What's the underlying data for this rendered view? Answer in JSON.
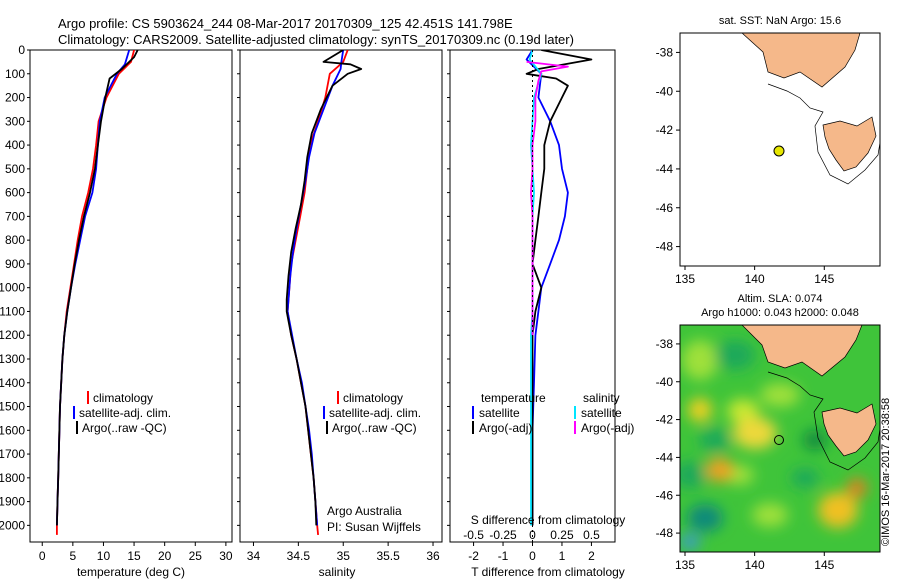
{
  "header": {
    "line1": "Argo profile: CS 5903624_244 08-Mar-2017 20170309_125 42.451S 141.798E",
    "line2": "Climatology: CARS2009. Satellite-adjusted climatology: synTS_20170309.nc (0.19d later)"
  },
  "colors": {
    "climatology": "#ff0000",
    "satellite": "#0000ff",
    "argo": "#000000",
    "sal_satellite": "#00e5ff",
    "sal_argo": "#ff00ff",
    "land": "#f5b88a"
  },
  "depth_ticks": [
    "0",
    "100",
    "200",
    "300",
    "400",
    "500",
    "600",
    "700",
    "800",
    "900",
    "1000",
    "1100",
    "1200",
    "1300",
    "1400",
    "1500",
    "1600",
    "1700",
    "1800",
    "1900",
    "2000"
  ],
  "panel1": {
    "xlabel": "temperature (deg C)",
    "xticks": [
      "0",
      "5",
      "10",
      "15",
      "20",
      "25",
      "30"
    ],
    "legend": [
      "climatology",
      "satellite-adj. clim.",
      "Argo(..raw -QC)"
    ]
  },
  "panel2": {
    "xlabel": "salinity",
    "xticks": [
      "34",
      "34.5",
      "35",
      "35.5",
      "36"
    ],
    "legend": [
      "climatology",
      "satellite-adj. clim.",
      "Argo(..raw -QC)"
    ],
    "note1": "Argo Australia",
    "note2": "PI: Susan Wijffels"
  },
  "panel3": {
    "top_label": "S difference from climatology",
    "top_ticks": [
      "-0.5",
      "-0.25",
      "0",
      "0.25",
      "0.5"
    ],
    "xlabel": "T difference from climatology",
    "xticks": [
      "-2",
      "-1",
      "0",
      "1",
      "2"
    ],
    "legend_t_title": "temperature",
    "legend_s_title": "salinity",
    "legend_t": [
      "satellite",
      "Argo(-adj)"
    ],
    "legend_s": [
      "satellite",
      "Argo(-adj)"
    ]
  },
  "map1": {
    "title": "sat. SST: NaN Argo: 15.6",
    "yticks": [
      "-38",
      "-40",
      "-42",
      "-44",
      "-46",
      "-48"
    ],
    "xticks": [
      "135",
      "140",
      "145"
    ]
  },
  "map2": {
    "title1": "Altim. SLA: 0.074",
    "title2": "Argo h1000: 0.043 h2000: 0.048",
    "yticks": [
      "-38",
      "-40",
      "-42",
      "-44",
      "-46",
      "-48"
    ],
    "xticks": [
      "135",
      "140",
      "145"
    ],
    "credit": "©IMOS 16-Mar-2017 20:38:58"
  },
  "chart_data": [
    {
      "type": "line",
      "title": "",
      "xlabel": "temperature (deg C)",
      "ylabel": "",
      "xlim": [
        -2,
        31
      ],
      "ylim": [
        2070,
        0
      ],
      "series": [
        {
          "name": "climatology",
          "color": "#ff0000",
          "points": [
            [
              15,
              0
            ],
            [
              14.5,
              50
            ],
            [
              12.5,
              100
            ],
            [
              10.5,
              200
            ],
            [
              9.2,
              300
            ],
            [
              8.8,
              400
            ],
            [
              8.3,
              500
            ],
            [
              7.5,
              600
            ],
            [
              6.5,
              700
            ],
            [
              5.8,
              800
            ],
            [
              5.2,
              900
            ],
            [
              4.6,
              1000
            ],
            [
              4,
              1100
            ],
            [
              3.6,
              1200
            ],
            [
              3.3,
              1300
            ],
            [
              3.1,
              1400
            ],
            [
              2.9,
              1500
            ],
            [
              2.8,
              1600
            ],
            [
              2.7,
              1700
            ],
            [
              2.6,
              1800
            ],
            [
              2.5,
              1900
            ],
            [
              2.4,
              2000
            ],
            [
              2.4,
              2040
            ]
          ]
        },
        {
          "name": "satellite-adj. clim.",
          "color": "#0000ff",
          "points": [
            [
              14.2,
              0
            ],
            [
              13.5,
              60
            ],
            [
              12.2,
              100
            ],
            [
              10.2,
              200
            ],
            [
              9.4,
              300
            ],
            [
              9.1,
              400
            ],
            [
              8.8,
              500
            ],
            [
              8.2,
              600
            ],
            [
              7,
              700
            ],
            [
              6.2,
              800
            ],
            [
              5.4,
              900
            ],
            [
              4.7,
              1000
            ],
            [
              4.1,
              1100
            ],
            [
              3.6,
              1200
            ],
            [
              3.3,
              1300
            ],
            [
              3.1,
              1400
            ],
            [
              2.9,
              1500
            ],
            [
              2.8,
              1600
            ],
            [
              2.7,
              1700
            ],
            [
              2.6,
              1800
            ],
            [
              2.5,
              1900
            ],
            [
              2.4,
              2000
            ]
          ]
        },
        {
          "name": "Argo(..raw -QC)",
          "color": "#000000",
          "points": [
            [
              15.6,
              0
            ],
            [
              15,
              30
            ],
            [
              13,
              80
            ],
            [
              11,
              120
            ],
            [
              10.3,
              200
            ],
            [
              9.6,
              300
            ],
            [
              9.1,
              400
            ],
            [
              8.6,
              500
            ],
            [
              7.8,
              600
            ],
            [
              6.8,
              700
            ],
            [
              6,
              800
            ],
            [
              5.3,
              900
            ],
            [
              4.7,
              1000
            ],
            [
              4.1,
              1100
            ],
            [
              3.6,
              1200
            ],
            [
              3.3,
              1300
            ],
            [
              3.1,
              1400
            ],
            [
              2.9,
              1500
            ],
            [
              2.8,
              1600
            ],
            [
              2.7,
              1700
            ],
            [
              2.6,
              1800
            ],
            [
              2.5,
              1900
            ],
            [
              2.4,
              2000
            ]
          ]
        }
      ]
    },
    {
      "type": "line",
      "title": "",
      "xlabel": "salinity",
      "ylabel": "",
      "xlim": [
        33.85,
        36.1
      ],
      "ylim": [
        2070,
        0
      ],
      "series": [
        {
          "name": "climatology",
          "color": "#ff0000",
          "points": [
            [
              35.05,
              0
            ],
            [
              35,
              50
            ],
            [
              34.85,
              100
            ],
            [
              34.8,
              200
            ],
            [
              34.72,
              300
            ],
            [
              34.63,
              400
            ],
            [
              34.6,
              500
            ],
            [
              34.57,
              600
            ],
            [
              34.52,
              700
            ],
            [
              34.47,
              800
            ],
            [
              34.42,
              900
            ],
            [
              34.4,
              1000
            ],
            [
              34.38,
              1100
            ],
            [
              34.42,
              1200
            ],
            [
              34.48,
              1300
            ],
            [
              34.53,
              1400
            ],
            [
              34.58,
              1500
            ],
            [
              34.61,
              1600
            ],
            [
              34.64,
              1700
            ],
            [
              34.67,
              1800
            ],
            [
              34.69,
              1900
            ],
            [
              34.71,
              2000
            ],
            [
              34.72,
              2040
            ]
          ]
        },
        {
          "name": "satellite-adj. clim.",
          "color": "#0000ff",
          "points": [
            [
              35,
              0
            ],
            [
              34.98,
              50
            ],
            [
              34.97,
              80
            ],
            [
              34.88,
              150
            ],
            [
              34.78,
              250
            ],
            [
              34.68,
              350
            ],
            [
              34.62,
              450
            ],
            [
              34.58,
              550
            ],
            [
              34.53,
              650
            ],
            [
              34.48,
              750
            ],
            [
              34.44,
              850
            ],
            [
              34.41,
              950
            ],
            [
              34.39,
              1050
            ],
            [
              34.38,
              1100
            ],
            [
              34.43,
              1200
            ],
            [
              34.48,
              1300
            ],
            [
              34.54,
              1400
            ],
            [
              34.58,
              1500
            ],
            [
              34.62,
              1600
            ],
            [
              34.65,
              1700
            ],
            [
              34.67,
              1800
            ],
            [
              34.69,
              1900
            ],
            [
              34.71,
              2000
            ]
          ]
        },
        {
          "name": "Argo(..raw -QC)",
          "color": "#000000",
          "points": [
            [
              35,
              0
            ],
            [
              34.78,
              50
            ],
            [
              35.08,
              60
            ],
            [
              35.2,
              80
            ],
            [
              35.05,
              100
            ],
            [
              34.88,
              150
            ],
            [
              34.75,
              250
            ],
            [
              34.65,
              350
            ],
            [
              34.6,
              450
            ],
            [
              34.57,
              550
            ],
            [
              34.53,
              650
            ],
            [
              34.47,
              750
            ],
            [
              34.42,
              850
            ],
            [
              34.39,
              950
            ],
            [
              34.37,
              1050
            ],
            [
              34.37,
              1100
            ],
            [
              34.42,
              1200
            ],
            [
              34.48,
              1300
            ],
            [
              34.53,
              1400
            ],
            [
              34.58,
              1500
            ],
            [
              34.61,
              1600
            ],
            [
              34.64,
              1700
            ],
            [
              34.67,
              1800
            ],
            [
              34.69,
              1900
            ],
            [
              34.7,
              2000
            ]
          ]
        }
      ]
    },
    {
      "type": "line",
      "title": "",
      "xlabel": "T difference from climatology",
      "ylabel": "",
      "xlim": [
        -2.8,
        2.8
      ],
      "ylim": [
        2070,
        0
      ],
      "series": [
        {
          "name": "satellite",
          "color": "#0000ff",
          "points": [
            [
              0,
              0
            ],
            [
              -0.2,
              40
            ],
            [
              0.3,
              100
            ],
            [
              0.2,
              200
            ],
            [
              0.6,
              300
            ],
            [
              0.9,
              400
            ],
            [
              1,
              500
            ],
            [
              1.2,
              600
            ],
            [
              1.1,
              700
            ],
            [
              0.9,
              800
            ],
            [
              0.6,
              900
            ],
            [
              0.3,
              1000
            ],
            [
              0.2,
              1100
            ],
            [
              0.1,
              1200
            ],
            [
              0.05,
              1400
            ],
            [
              0,
              1600
            ],
            [
              0,
              2000
            ]
          ]
        },
        {
          "name": "Argo(-adj)",
          "color": "#000000",
          "points": [
            [
              0.3,
              0
            ],
            [
              2,
              40
            ],
            [
              0.2,
              80
            ],
            [
              -0.2,
              100
            ],
            [
              0.8,
              120
            ],
            [
              1.2,
              150
            ],
            [
              1,
              200
            ],
            [
              0.6,
              300
            ],
            [
              0.4,
              400
            ],
            [
              0.4,
              500
            ],
            [
              0.3,
              600
            ],
            [
              0.2,
              700
            ],
            [
              0.1,
              800
            ],
            [
              0,
              900
            ],
            [
              0.3,
              1000
            ],
            [
              0.1,
              1100
            ],
            [
              0,
              1200
            ],
            [
              0,
              1400
            ],
            [
              0,
              1600
            ],
            [
              0,
              2000
            ]
          ]
        },
        {
          "name": "salinity satellite",
          "color": "#00e5ff",
          "points": [
            [
              0,
              0
            ],
            [
              -0.1,
              40
            ],
            [
              0.3,
              100
            ],
            [
              0.05,
              200
            ],
            [
              0,
              300
            ],
            [
              -0.05,
              400
            ],
            [
              0,
              500
            ],
            [
              0.05,
              600
            ],
            [
              0,
              700
            ],
            [
              0,
              800
            ],
            [
              0,
              900
            ],
            [
              0,
              1000
            ],
            [
              0,
              1100
            ],
            [
              -0.05,
              1200
            ],
            [
              -0.05,
              1400
            ],
            [
              -0.05,
              1600
            ],
            [
              -0.05,
              2000
            ]
          ]
        },
        {
          "name": "salinity Argo(-adj)",
          "color": "#ff00ff",
          "points": [
            [
              -0.2,
              50
            ],
            [
              1.2,
              70
            ],
            [
              0.3,
              90
            ],
            [
              0.2,
              130
            ],
            [
              0.1,
              200
            ],
            [
              0.1,
              300
            ],
            [
              0,
              400
            ],
            [
              0,
              500
            ],
            [
              -0.05,
              600
            ],
            [
              0,
              700
            ],
            [
              0,
              800
            ],
            [
              0,
              900
            ],
            [
              0,
              1000
            ],
            [
              0,
              1100
            ],
            [
              0,
              1200
            ]
          ]
        }
      ]
    }
  ]
}
